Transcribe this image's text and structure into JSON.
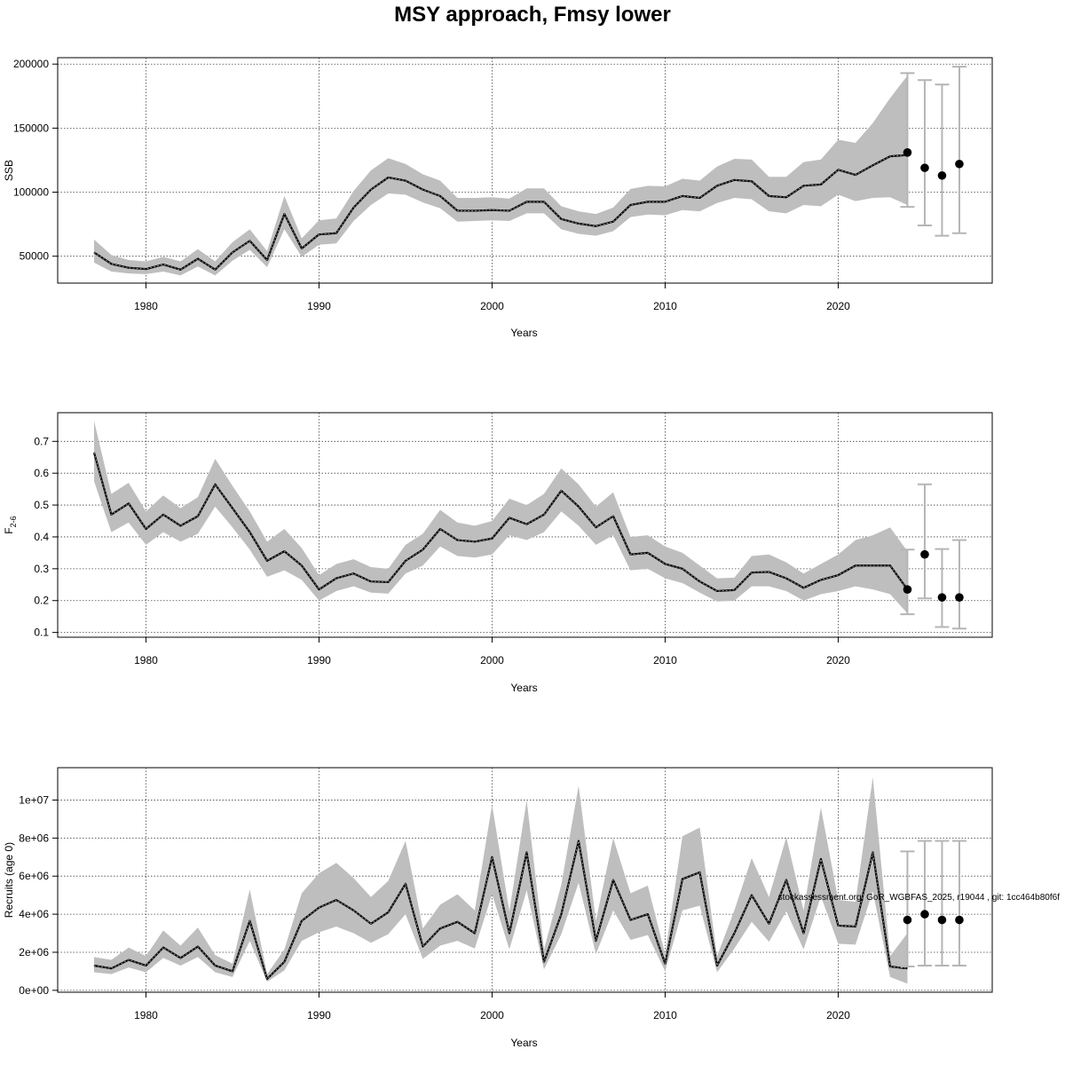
{
  "title": "MSY approach, Fmsy lower",
  "watermark": "stockassessment.org, GoR_WGBFAS_2025, r19044 , git: 1cc464b80f6f",
  "chart_data": [
    {
      "type": "line",
      "ylabel": "SSB",
      "ylabel_main": "SSB",
      "ylabel_sub": "",
      "xlabel": "Years",
      "xlim": [
        1974.9,
        2028.9
      ],
      "ylim": [
        29000,
        205000
      ],
      "yticks": [
        50000,
        100000,
        150000,
        200000
      ],
      "ytick_labels": [
        "50000",
        "100000",
        "150000",
        "200000"
      ],
      "xticks": [
        1980,
        1990,
        2000,
        2010,
        2020
      ],
      "xtick_labels": [
        "1980",
        "1990",
        "2000",
        "2010",
        "2020"
      ],
      "years": [
        1977,
        1978,
        1979,
        1980,
        1981,
        1982,
        1983,
        1984,
        1985,
        1986,
        1987,
        1988,
        1989,
        1990,
        1991,
        1992,
        1993,
        1994,
        1995,
        1996,
        1997,
        1998,
        1999,
        2000,
        2001,
        2002,
        2003,
        2004,
        2005,
        2006,
        2007,
        2008,
        2009,
        2010,
        2011,
        2012,
        2013,
        2014,
        2015,
        2016,
        2017,
        2018,
        2019,
        2020,
        2021,
        2022,
        2023,
        2024
      ],
      "estimate": [
        53000,
        44000,
        41000,
        40000,
        43500,
        39500,
        48000,
        39500,
        53000,
        62000,
        47000,
        83000,
        56000,
        67000,
        68000,
        88000,
        102000,
        111500,
        109000,
        102000,
        97000,
        85500,
        85500,
        86000,
        85500,
        92500,
        92500,
        79000,
        75500,
        73500,
        77000,
        90000,
        92500,
        92500,
        97000,
        95500,
        105000,
        109500,
        108500,
        97000,
        96000,
        105000,
        106000,
        117500,
        113500,
        121000,
        128000,
        129000
      ],
      "lower": [
        45000,
        38000,
        36500,
        36000,
        38000,
        35000,
        42000,
        35000,
        46500,
        55000,
        41500,
        71000,
        49500,
        59000,
        60000,
        77500,
        90000,
        99000,
        98000,
        92000,
        87500,
        77000,
        77500,
        78000,
        77500,
        83500,
        83500,
        71000,
        67500,
        66000,
        69500,
        80500,
        82500,
        82000,
        86000,
        85000,
        91500,
        95500,
        94500,
        85000,
        83500,
        90000,
        89000,
        98000,
        93000,
        95500,
        96000,
        90000
      ],
      "upper": [
        63000,
        51000,
        47000,
        46000,
        49500,
        46000,
        55500,
        46000,
        61000,
        71000,
        54000,
        97000,
        64000,
        78000,
        79500,
        101000,
        117000,
        126500,
        122000,
        114000,
        109000,
        95500,
        95500,
        96000,
        95000,
        103000,
        103000,
        89000,
        85000,
        83000,
        88000,
        102500,
        105000,
        104500,
        110500,
        109000,
        120000,
        126000,
        125500,
        112000,
        112000,
        123500,
        125500,
        141000,
        138500,
        154000,
        173500,
        191000
      ],
      "forecast": {
        "years": [
          2024,
          2025,
          2026,
          2027
        ],
        "median": [
          131000,
          119000,
          113000,
          122000
        ],
        "low": [
          88500,
          74000,
          66000,
          68000
        ],
        "high": [
          193000,
          187500,
          184000,
          198000
        ]
      }
    },
    {
      "type": "line",
      "ylabel": "F2-6",
      "ylabel_main": "F",
      "ylabel_sub": "2-6",
      "xlabel": "Years",
      "xlim": [
        1974.9,
        2028.9
      ],
      "ylim": [
        0.085,
        0.79
      ],
      "yticks": [
        0.1,
        0.2,
        0.3,
        0.4,
        0.5,
        0.6,
        0.7
      ],
      "ytick_labels": [
        "0.1",
        "0.2",
        "0.3",
        "0.4",
        "0.5",
        "0.6",
        "0.7"
      ],
      "xticks": [
        1980,
        1990,
        2000,
        2010,
        2020
      ],
      "xtick_labels": [
        "1980",
        "1990",
        "2000",
        "2010",
        "2020"
      ],
      "years": [
        1977,
        1978,
        1979,
        1980,
        1981,
        1982,
        1983,
        1984,
        1985,
        1986,
        1987,
        1988,
        1989,
        1990,
        1991,
        1992,
        1993,
        1994,
        1995,
        1996,
        1997,
        1998,
        1999,
        2000,
        2001,
        2002,
        2003,
        2004,
        2005,
        2006,
        2007,
        2008,
        2009,
        2010,
        2011,
        2012,
        2013,
        2014,
        2015,
        2016,
        2017,
        2018,
        2019,
        2020,
        2021,
        2022,
        2023,
        2024
      ],
      "estimate": [
        0.665,
        0.47,
        0.505,
        0.425,
        0.47,
        0.435,
        0.465,
        0.565,
        0.49,
        0.415,
        0.325,
        0.355,
        0.31,
        0.235,
        0.27,
        0.285,
        0.26,
        0.258,
        0.325,
        0.36,
        0.425,
        0.39,
        0.385,
        0.395,
        0.46,
        0.44,
        0.47,
        0.545,
        0.495,
        0.43,
        0.465,
        0.345,
        0.35,
        0.315,
        0.3,
        0.26,
        0.23,
        0.233,
        0.288,
        0.29,
        0.27,
        0.24,
        0.265,
        0.28,
        0.31,
        0.31,
        0.31,
        0.235
      ],
      "lower": [
        0.575,
        0.415,
        0.445,
        0.375,
        0.415,
        0.385,
        0.41,
        0.495,
        0.43,
        0.36,
        0.275,
        0.295,
        0.265,
        0.2,
        0.23,
        0.245,
        0.225,
        0.222,
        0.285,
        0.31,
        0.37,
        0.34,
        0.335,
        0.345,
        0.405,
        0.39,
        0.415,
        0.48,
        0.435,
        0.375,
        0.405,
        0.295,
        0.3,
        0.27,
        0.255,
        0.225,
        0.197,
        0.2,
        0.245,
        0.245,
        0.23,
        0.2,
        0.22,
        0.23,
        0.245,
        0.235,
        0.22,
        0.16
      ],
      "upper": [
        0.765,
        0.535,
        0.57,
        0.48,
        0.53,
        0.49,
        0.525,
        0.645,
        0.56,
        0.48,
        0.385,
        0.425,
        0.365,
        0.28,
        0.315,
        0.33,
        0.305,
        0.3,
        0.375,
        0.41,
        0.485,
        0.445,
        0.435,
        0.45,
        0.52,
        0.5,
        0.535,
        0.615,
        0.565,
        0.495,
        0.54,
        0.4,
        0.405,
        0.37,
        0.35,
        0.31,
        0.27,
        0.272,
        0.34,
        0.345,
        0.32,
        0.285,
        0.315,
        0.345,
        0.39,
        0.405,
        0.43,
        0.355
      ],
      "forecast": {
        "years": [
          2024,
          2025,
          2026,
          2027
        ],
        "median": [
          0.235,
          0.345,
          0.21,
          0.21
        ],
        "low": [
          0.157,
          0.207,
          0.117,
          0.112
        ],
        "high": [
          0.36,
          0.565,
          0.362,
          0.39
        ]
      }
    },
    {
      "type": "line",
      "ylabel": "Recruits (age 0)",
      "ylabel_main": "Recruits (age 0)",
      "ylabel_sub": "",
      "xlabel": "Years",
      "xlim": [
        1974.9,
        2028.9
      ],
      "ylim": [
        -100000,
        11700000
      ],
      "yticks": [
        0,
        2000000,
        4000000,
        6000000,
        8000000,
        10000000
      ],
      "ytick_labels": [
        "0e+00",
        "2e+06",
        "4e+06",
        "6e+06",
        "8e+06",
        "1e+07"
      ],
      "xticks": [
        1980,
        1990,
        2000,
        2010,
        2020
      ],
      "xtick_labels": [
        "1980",
        "1990",
        "2000",
        "2010",
        "2020"
      ],
      "years": [
        1977,
        1978,
        1979,
        1980,
        1981,
        1982,
        1983,
        1984,
        1985,
        1986,
        1987,
        1988,
        1989,
        1990,
        1991,
        1992,
        1993,
        1994,
        1995,
        1996,
        1997,
        1998,
        1999,
        2000,
        2001,
        2002,
        2003,
        2004,
        2005,
        2006,
        2007,
        2008,
        2009,
        2010,
        2011,
        2012,
        2013,
        2014,
        2015,
        2016,
        2017,
        2018,
        2019,
        2020,
        2021,
        2022,
        2023,
        2024
      ],
      "estimate": [
        1300000,
        1150000,
        1600000,
        1300000,
        2250000,
        1700000,
        2300000,
        1300000,
        1000000,
        3650000,
        600000,
        1500000,
        3650000,
        4350000,
        4750000,
        4200000,
        3500000,
        4100000,
        5600000,
        2300000,
        3250000,
        3600000,
        3000000,
        7000000,
        3000000,
        7250000,
        1500000,
        4000000,
        7850000,
        2600000,
        5800000,
        3700000,
        4000000,
        1400000,
        5850000,
        6200000,
        1300000,
        3000000,
        5000000,
        3500000,
        5800000,
        3000000,
        6900000,
        3400000,
        3350000,
        7250000,
        1250000,
        1150000
      ],
      "lower": [
        950000,
        850000,
        1200000,
        950000,
        1700000,
        1300000,
        1750000,
        950000,
        700000,
        2600000,
        450000,
        1050000,
        2600000,
        3050000,
        3350000,
        3000000,
        2500000,
        2950000,
        4000000,
        1650000,
        2350000,
        2600000,
        2200000,
        5050000,
        2150000,
        5250000,
        1100000,
        2950000,
        5650000,
        1900000,
        4200000,
        2650000,
        2900000,
        1000000,
        4200000,
        4450000,
        950000,
        2200000,
        3600000,
        2550000,
        4150000,
        2150000,
        4950000,
        2450000,
        2400000,
        5200000,
        700000,
        350000
      ],
      "upper": [
        1750000,
        1600000,
        2250000,
        1800000,
        3150000,
        2350000,
        3300000,
        1850000,
        1400000,
        5300000,
        850000,
        2150000,
        5100000,
        6150000,
        6700000,
        5900000,
        4900000,
        5750000,
        7850000,
        3250000,
        4500000,
        5050000,
        4200000,
        9750000,
        4150000,
        10000000,
        2150000,
        5550000,
        10750000,
        3650000,
        8000000,
        5100000,
        5500000,
        1900000,
        8100000,
        8550000,
        1800000,
        4200000,
        6950000,
        4900000,
        8050000,
        4200000,
        9600000,
        4750000,
        4650000,
        11200000,
        1800000,
        3000000
      ],
      "forecast": {
        "years": [
          2024,
          2025,
          2026,
          2027
        ],
        "median": [
          3700000,
          4000000,
          3700000,
          3700000
        ],
        "low": [
          1250000,
          1300000,
          1300000,
          1300000
        ],
        "high": [
          7300000,
          7850000,
          7850000,
          7850000
        ]
      }
    }
  ]
}
